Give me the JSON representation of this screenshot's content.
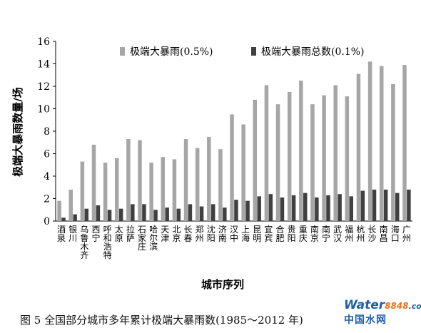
{
  "chart_data": {
    "type": "bar",
    "ylabel": "极端大暴雨数量/场",
    "xlabel": "城市序列",
    "ylim": [
      0,
      16
    ],
    "yticks": [
      0,
      2,
      4,
      6,
      8,
      10,
      12,
      14,
      16
    ],
    "legend_position": "top",
    "grid": false,
    "categories": [
      "酒泉",
      "银川",
      "乌鲁木齐",
      "西宁",
      "呼和浩特",
      "太原",
      "拉萨",
      "石家庄",
      "哈尔滨",
      "天津",
      "北京",
      "长春",
      "郑州",
      "沈阳",
      "济南",
      "汉中",
      "上海",
      "昆明",
      "宜宾",
      "合肥",
      "贵阳",
      "重庆",
      "南京",
      "南宁",
      "武汉",
      "福州",
      "杭州",
      "长沙",
      "南昌",
      "海口",
      "广州"
    ],
    "series": [
      {
        "name": "极端大暴雨(0.5%)",
        "color": "#a6a6a6",
        "values": [
          1.8,
          2.8,
          5.3,
          6.8,
          5.2,
          5.6,
          7.3,
          7.2,
          5.2,
          5.7,
          5.5,
          7.3,
          6.5,
          7.5,
          6.4,
          9.5,
          8.6,
          10.8,
          12.1,
          10.4,
          11.5,
          12.5,
          10.4,
          11.2,
          12.1,
          11.1,
          13.1,
          14.2,
          13.8,
          12.2,
          13.9
        ]
      },
      {
        "name": "极端大暴雨总数(0.1%)",
        "color": "#404040",
        "values": [
          0.3,
          0.6,
          1.1,
          1.4,
          1.0,
          1.1,
          1.5,
          1.5,
          1.0,
          1.2,
          1.1,
          1.5,
          1.3,
          1.5,
          1.2,
          1.9,
          1.8,
          2.2,
          2.4,
          2.1,
          2.3,
          2.5,
          2.1,
          2.3,
          2.4,
          2.2,
          2.7,
          2.8,
          2.8,
          2.5,
          2.8
        ]
      }
    ]
  },
  "caption": "图 5 全国部分城市多年累计极端大暴雨数(1985～2012 年)",
  "watermark": {
    "brand": "Water",
    "number": "8848",
    "suffix": ".com",
    "sub": "中国水网"
  }
}
